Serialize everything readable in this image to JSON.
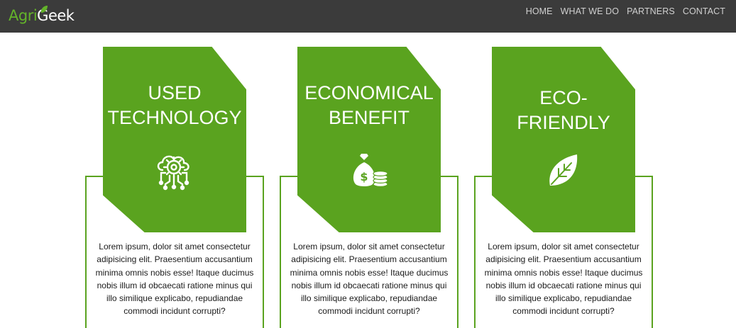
{
  "header": {
    "logo": {
      "part1": "Agri",
      "part2": "Geek"
    },
    "nav": [
      "HOME",
      "WHAT WE DO",
      "PARTNERS",
      "CONTACT"
    ]
  },
  "cards": [
    {
      "title": "USED TECHNOLOGY",
      "title_line1": "USED",
      "title_line2": "TECHNOLOGY",
      "icon": "cloud-gear-circuit-icon",
      "body": "Lorem ipsum, dolor sit amet consectetur adipisicing elit. Praesentium accusantium minima omnis nobis esse! Itaque ducimus nobis illum id obcaecati ratione minus qui illo similique explicabo, repudiandae commodi incidunt corrupti?"
    },
    {
      "title": "ECONOMICAL BENEFIT",
      "title_line1": "ECONOMICAL",
      "title_line2": "BENEFIT",
      "icon": "money-bag-coins-icon",
      "body": "Lorem ipsum, dolor sit amet consectetur adipisicing elit. Praesentium accusantium minima omnis nobis esse! Itaque ducimus nobis illum id obcaecati ratione minus qui illo similique explicabo, repudiandae commodi incidunt corrupti?"
    },
    {
      "title": "ECO-FRIENDLY",
      "title_line1": "ECO-",
      "title_line2": "FRIENDLY",
      "icon": "leaf-icon",
      "body": "Lorem ipsum, dolor sit amet consectetur adipisicing elit. Praesentium accusantium minima omnis nobis esse! Itaque ducimus nobis illum id obcaecati ratione minus qui illo similique explicabo, repudiandae commodi incidunt corrupti?"
    }
  ],
  "colors": {
    "navbar": "#3b3b3b",
    "brand_green": "#5aa31f",
    "logo_green": "#63b32a",
    "nav_text": "#d0d0d0"
  }
}
